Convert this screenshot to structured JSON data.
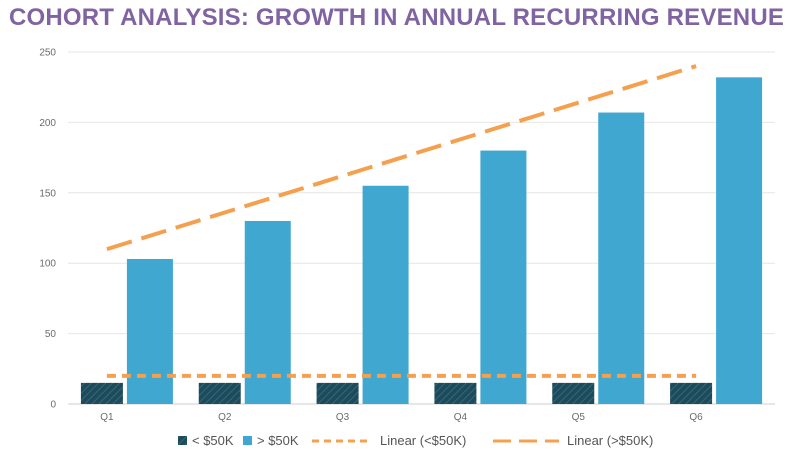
{
  "chart_data": {
    "type": "bar",
    "title": "COHORT ANALYSIS: GROWTH IN ANNUAL RECURRING REVENUE",
    "categories": [
      "Q1",
      "Q2",
      "Q3",
      "Q4",
      "Q5",
      "Q6"
    ],
    "series": [
      {
        "name": "< $50K",
        "values": [
          15,
          15,
          15,
          15,
          15,
          15
        ],
        "color": "#1f4a5a",
        "pattern": "hatched"
      },
      {
        "name": "> $50K",
        "values": [
          103,
          130,
          155,
          180,
          207,
          232
        ],
        "color": "#3fa7d0"
      }
    ],
    "trendlines": [
      {
        "name": "Linear (<$50K)",
        "start": 20,
        "end": 20,
        "style": "dashed",
        "color": "#f4a04e"
      },
      {
        "name": "Linear (>$50K)",
        "start": 110,
        "end": 240,
        "style": "long-dashed",
        "color": "#f4a04e"
      }
    ],
    "yticks": [
      0,
      50,
      100,
      150,
      200,
      250
    ],
    "ylim": [
      0,
      250
    ],
    "grid": true,
    "legend_position": "bottom",
    "title_color": "#8064a2"
  }
}
